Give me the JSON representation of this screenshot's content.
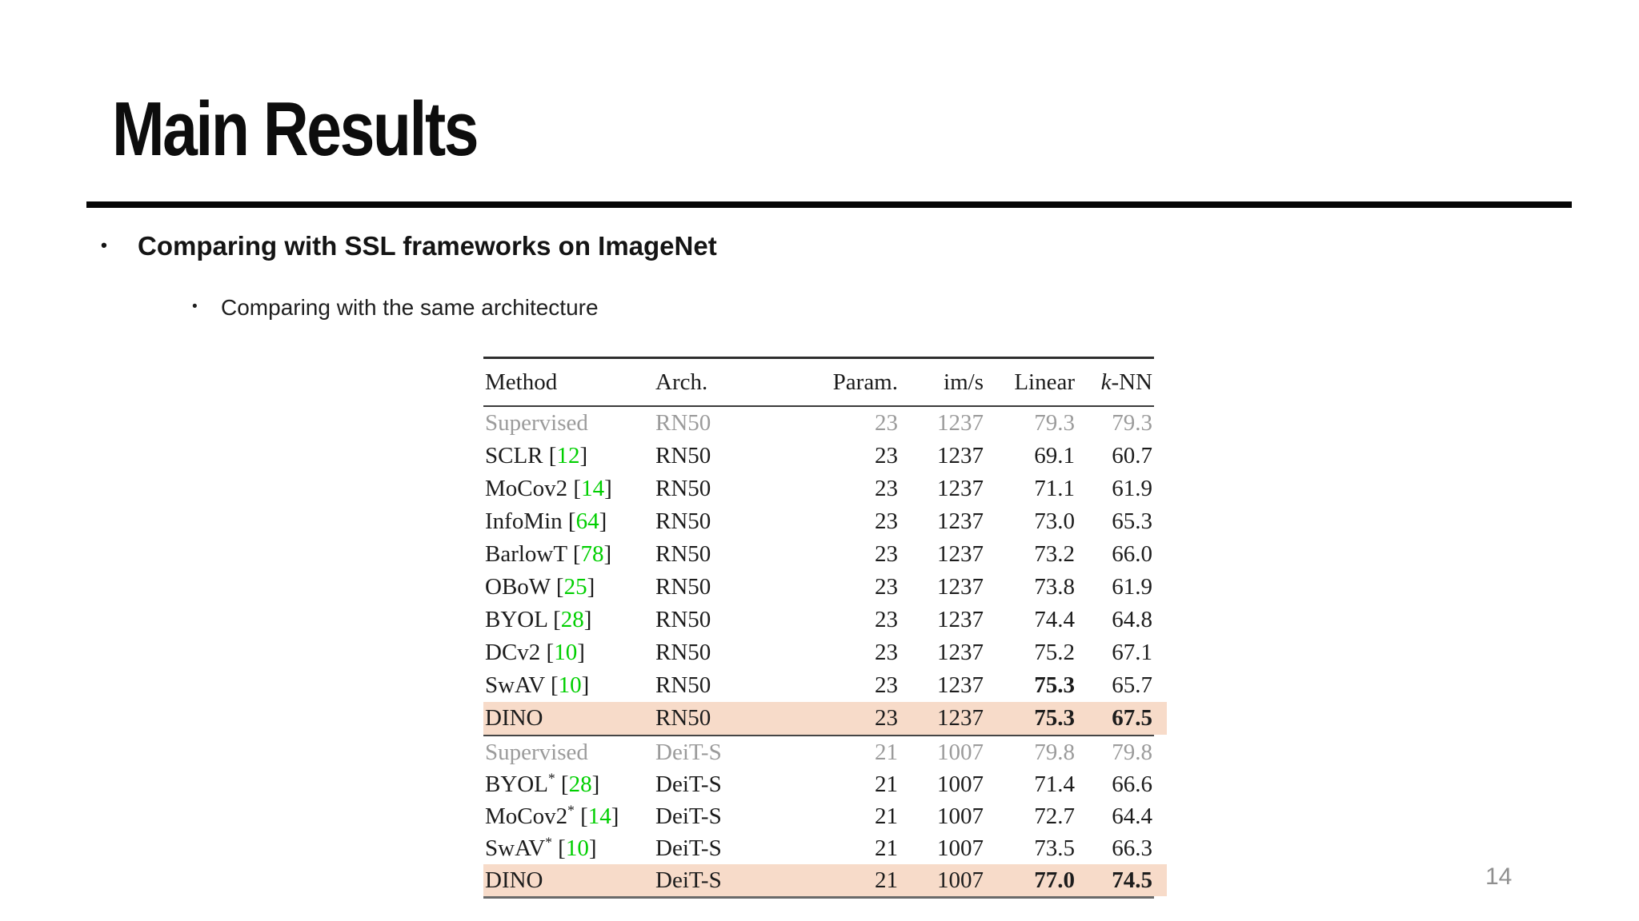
{
  "slide": {
    "title": "Main Results",
    "bullets": [
      {
        "marker": "•",
        "text": "Comparing with SSL frameworks on ImageNet"
      },
      {
        "marker": "•",
        "text": "Comparing with the same architecture"
      }
    ],
    "page_number": "14"
  },
  "colors": {
    "highlight_row": "#f7dbc9",
    "citation_green": "#00cf00",
    "muted_gray": "#9b9b9b"
  },
  "table": {
    "headers": [
      {
        "id": "method",
        "text": "Method"
      },
      {
        "id": "arch",
        "text": "Arch."
      },
      {
        "id": "param",
        "text": "Param."
      },
      {
        "id": "ims",
        "text": "im/s"
      },
      {
        "id": "linear",
        "text": "Linear"
      },
      {
        "id": "knn",
        "italic": "k",
        "text": "-NN"
      }
    ],
    "sections": [
      {
        "rows": [
          {
            "name": "Supervised",
            "sup": "",
            "cite": "",
            "arch": "RN50",
            "param": "23",
            "ims": "1237",
            "linear": "79.3",
            "knn": "79.3",
            "muted": true,
            "highlight": false,
            "bold_linear": false,
            "bold_knn": false
          },
          {
            "name": "SCLR",
            "sup": "",
            "cite": "12",
            "arch": "RN50",
            "param": "23",
            "ims": "1237",
            "linear": "69.1",
            "knn": "60.7",
            "muted": false,
            "highlight": false,
            "bold_linear": false,
            "bold_knn": false
          },
          {
            "name": "MoCov2",
            "sup": "",
            "cite": "14",
            "arch": "RN50",
            "param": "23",
            "ims": "1237",
            "linear": "71.1",
            "knn": "61.9",
            "muted": false,
            "highlight": false,
            "bold_linear": false,
            "bold_knn": false
          },
          {
            "name": "InfoMin",
            "sup": "",
            "cite": "64",
            "arch": "RN50",
            "param": "23",
            "ims": "1237",
            "linear": "73.0",
            "knn": "65.3",
            "muted": false,
            "highlight": false,
            "bold_linear": false,
            "bold_knn": false
          },
          {
            "name": "BarlowT",
            "sup": "",
            "cite": "78",
            "arch": "RN50",
            "param": "23",
            "ims": "1237",
            "linear": "73.2",
            "knn": "66.0",
            "muted": false,
            "highlight": false,
            "bold_linear": false,
            "bold_knn": false
          },
          {
            "name": "OBoW",
            "sup": "",
            "cite": "25",
            "arch": "RN50",
            "param": "23",
            "ims": "1237",
            "linear": "73.8",
            "knn": "61.9",
            "muted": false,
            "highlight": false,
            "bold_linear": false,
            "bold_knn": false
          },
          {
            "name": "BYOL",
            "sup": "",
            "cite": "28",
            "arch": "RN50",
            "param": "23",
            "ims": "1237",
            "linear": "74.4",
            "knn": "64.8",
            "muted": false,
            "highlight": false,
            "bold_linear": false,
            "bold_knn": false
          },
          {
            "name": "DCv2",
            "sup": "",
            "cite": "10",
            "arch": "RN50",
            "param": "23",
            "ims": "1237",
            "linear": "75.2",
            "knn": "67.1",
            "muted": false,
            "highlight": false,
            "bold_linear": false,
            "bold_knn": false
          },
          {
            "name": "SwAV",
            "sup": "",
            "cite": "10",
            "arch": "RN50",
            "param": "23",
            "ims": "1237",
            "linear": "75.3",
            "knn": "65.7",
            "muted": false,
            "highlight": false,
            "bold_linear": true,
            "bold_knn": false
          },
          {
            "name": "DINO",
            "sup": "",
            "cite": "",
            "arch": "RN50",
            "param": "23",
            "ims": "1237",
            "linear": "75.3",
            "knn": "67.5",
            "muted": false,
            "highlight": true,
            "bold_linear": true,
            "bold_knn": true
          }
        ]
      },
      {
        "rows": [
          {
            "name": "Supervised",
            "sup": "",
            "cite": "",
            "arch": "DeiT-S",
            "param": "21",
            "ims": "1007",
            "linear": "79.8",
            "knn": "79.8",
            "muted": true,
            "highlight": false,
            "bold_linear": false,
            "bold_knn": false
          },
          {
            "name": "BYOL",
            "sup": "*",
            "cite": "28",
            "arch": "DeiT-S",
            "param": "21",
            "ims": "1007",
            "linear": "71.4",
            "knn": "66.6",
            "muted": false,
            "highlight": false,
            "bold_linear": false,
            "bold_knn": false
          },
          {
            "name": "MoCov2",
            "sup": "*",
            "cite": "14",
            "arch": "DeiT-S",
            "param": "21",
            "ims": "1007",
            "linear": "72.7",
            "knn": "64.4",
            "muted": false,
            "highlight": false,
            "bold_linear": false,
            "bold_knn": false
          },
          {
            "name": "SwAV",
            "sup": "*",
            "cite": "10",
            "arch": "DeiT-S",
            "param": "21",
            "ims": "1007",
            "linear": "73.5",
            "knn": "66.3",
            "muted": false,
            "highlight": false,
            "bold_linear": false,
            "bold_knn": false
          },
          {
            "name": "DINO",
            "sup": "",
            "cite": "",
            "arch": "DeiT-S",
            "param": "21",
            "ims": "1007",
            "linear": "77.0",
            "knn": "74.5",
            "muted": false,
            "highlight": true,
            "bold_linear": true,
            "bold_knn": true
          }
        ]
      }
    ]
  }
}
